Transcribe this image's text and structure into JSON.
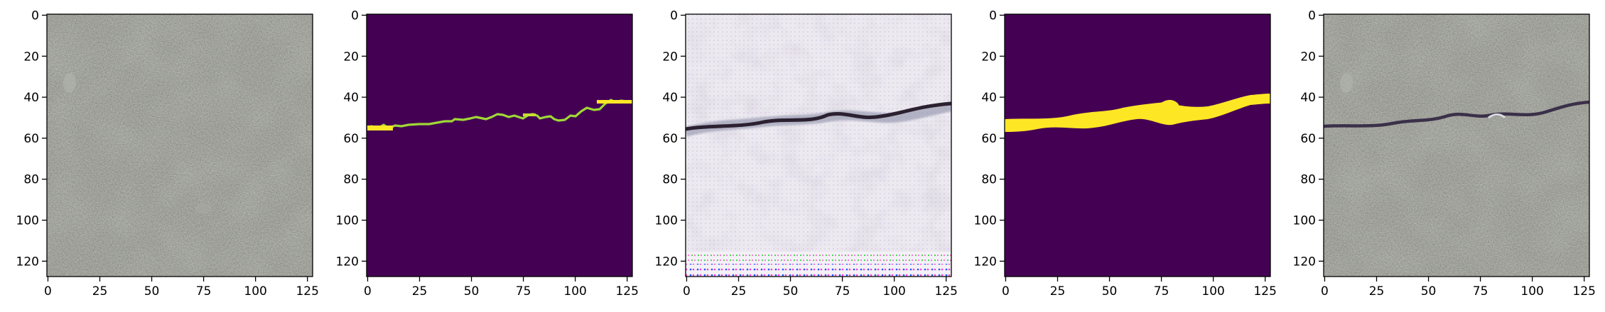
{
  "figure": {
    "panels": [
      {
        "content": "concrete-texture",
        "x_ticks": [
          "0",
          "25",
          "50",
          "75",
          "100",
          "125"
        ],
        "y_ticks": [
          "0",
          "20",
          "40",
          "60",
          "80",
          "100",
          "120"
        ]
      },
      {
        "content": "binary-crack-mask",
        "x_ticks": [
          "0",
          "25",
          "50",
          "75",
          "100",
          "125"
        ],
        "y_ticks": [
          "0",
          "20",
          "40",
          "60",
          "80",
          "100",
          "120"
        ]
      },
      {
        "content": "generated-crack-image",
        "x_ticks": [
          "0",
          "25",
          "50",
          "75",
          "100",
          "125"
        ],
        "y_ticks": [
          "0",
          "20",
          "40",
          "60",
          "80",
          "100",
          "120"
        ]
      },
      {
        "content": "smooth-crack-mask",
        "x_ticks": [
          "0",
          "25",
          "50",
          "75",
          "100",
          "125"
        ],
        "y_ticks": [
          "0",
          "20",
          "40",
          "60",
          "80",
          "100",
          "120"
        ]
      },
      {
        "content": "concrete-with-crack",
        "x_ticks": [
          "0",
          "25",
          "50",
          "75",
          "100",
          "125"
        ],
        "y_ticks": [
          "0",
          "20",
          "40",
          "60",
          "80",
          "100",
          "120"
        ]
      }
    ],
    "colors": {
      "concrete": "#8f9189",
      "mask_background": "#440154",
      "mask_foreground": "#fde725",
      "mask_edge": "#9fd835",
      "generated_background": "#eceaf0",
      "crack_dark": "#2b2130"
    }
  }
}
